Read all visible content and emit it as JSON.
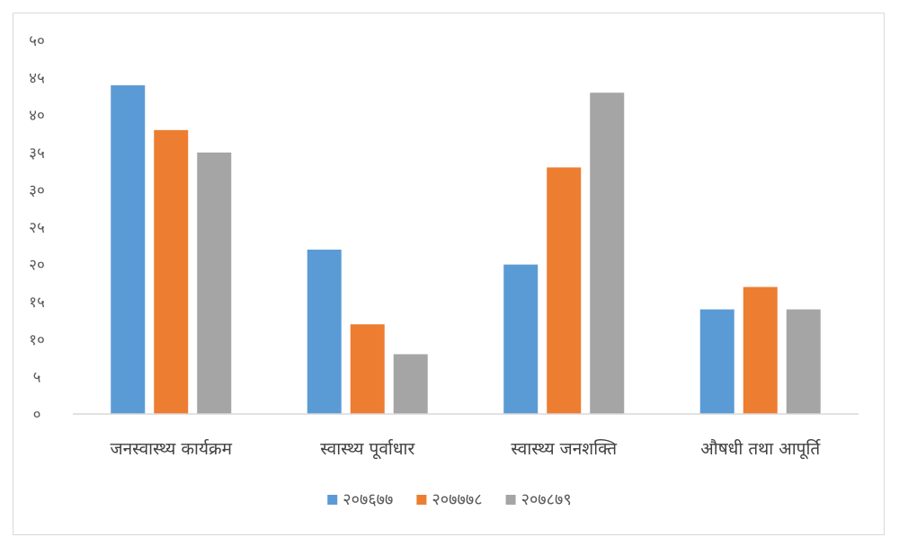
{
  "chart_data": {
    "type": "bar",
    "categories": [
      "जनस्वास्थ्य कार्यक्रम",
      "स्वास्थ्य पूर्वाधार",
      "स्वास्थ्य जनशक्ति",
      "औषधी तथा आपूर्ति"
    ],
    "series": [
      {
        "name": "२०७६७७",
        "color": "#5b9bd5",
        "values": [
          44,
          22,
          20,
          14
        ]
      },
      {
        "name": "२०७७७८",
        "color": "#ed7d31",
        "values": [
          38,
          12,
          33,
          17
        ]
      },
      {
        "name": "२०७८७९",
        "color": "#a5a5a5",
        "values": [
          35,
          8,
          43,
          14
        ]
      }
    ],
    "yticks": [
      "०",
      "५",
      "१०",
      "१५",
      "२०",
      "२५",
      "३०",
      "३५",
      "४०",
      "४५",
      "५०"
    ],
    "ylim": [
      0,
      50
    ],
    "grid": false,
    "legend": "bottom"
  }
}
